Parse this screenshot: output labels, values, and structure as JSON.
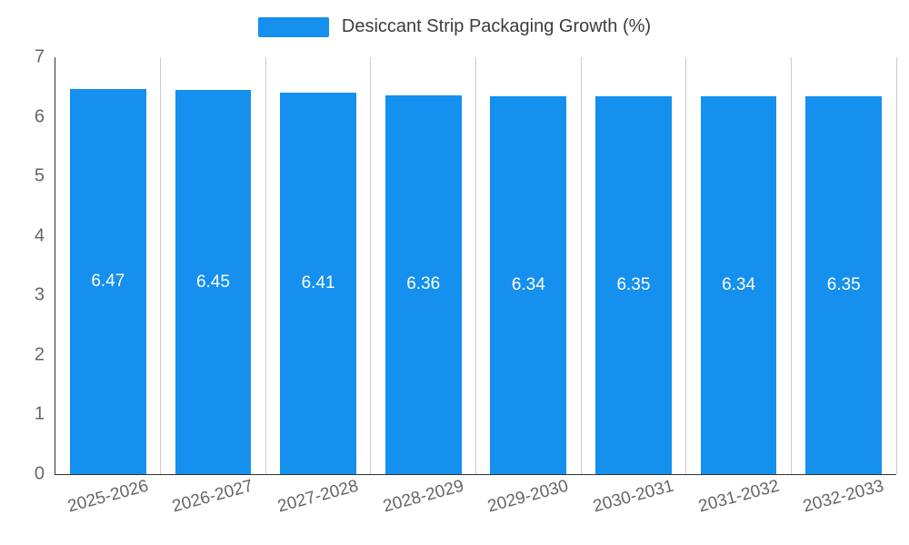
{
  "chart_data": {
    "type": "bar",
    "title": "Desiccant Strip Packaging Growth (%)",
    "categories": [
      "2025-2026",
      "2026-2027",
      "2027-2028",
      "2028-2029",
      "2029-2030",
      "2030-2031",
      "2031-2032",
      "2032-2033"
    ],
    "values": [
      6.47,
      6.45,
      6.41,
      6.36,
      6.34,
      6.35,
      6.34,
      6.35
    ],
    "value_labels": [
      "6.47",
      "6.45",
      "6.41",
      "6.36",
      "6.34",
      "6.35",
      "6.34",
      "6.35"
    ],
    "xlabel": "",
    "ylabel": "",
    "ylim": [
      0,
      7
    ],
    "yticks": [
      0,
      1,
      2,
      3,
      4,
      5,
      6,
      7
    ],
    "grid": "vertical",
    "legend_position": "top-center",
    "colors": {
      "bar": "#1590EE",
      "grid": "#cccccc",
      "axis": "#333333",
      "tick_text": "#666666",
      "title_text": "#3c3c3c",
      "bar_label_text": "#ffffff"
    }
  }
}
